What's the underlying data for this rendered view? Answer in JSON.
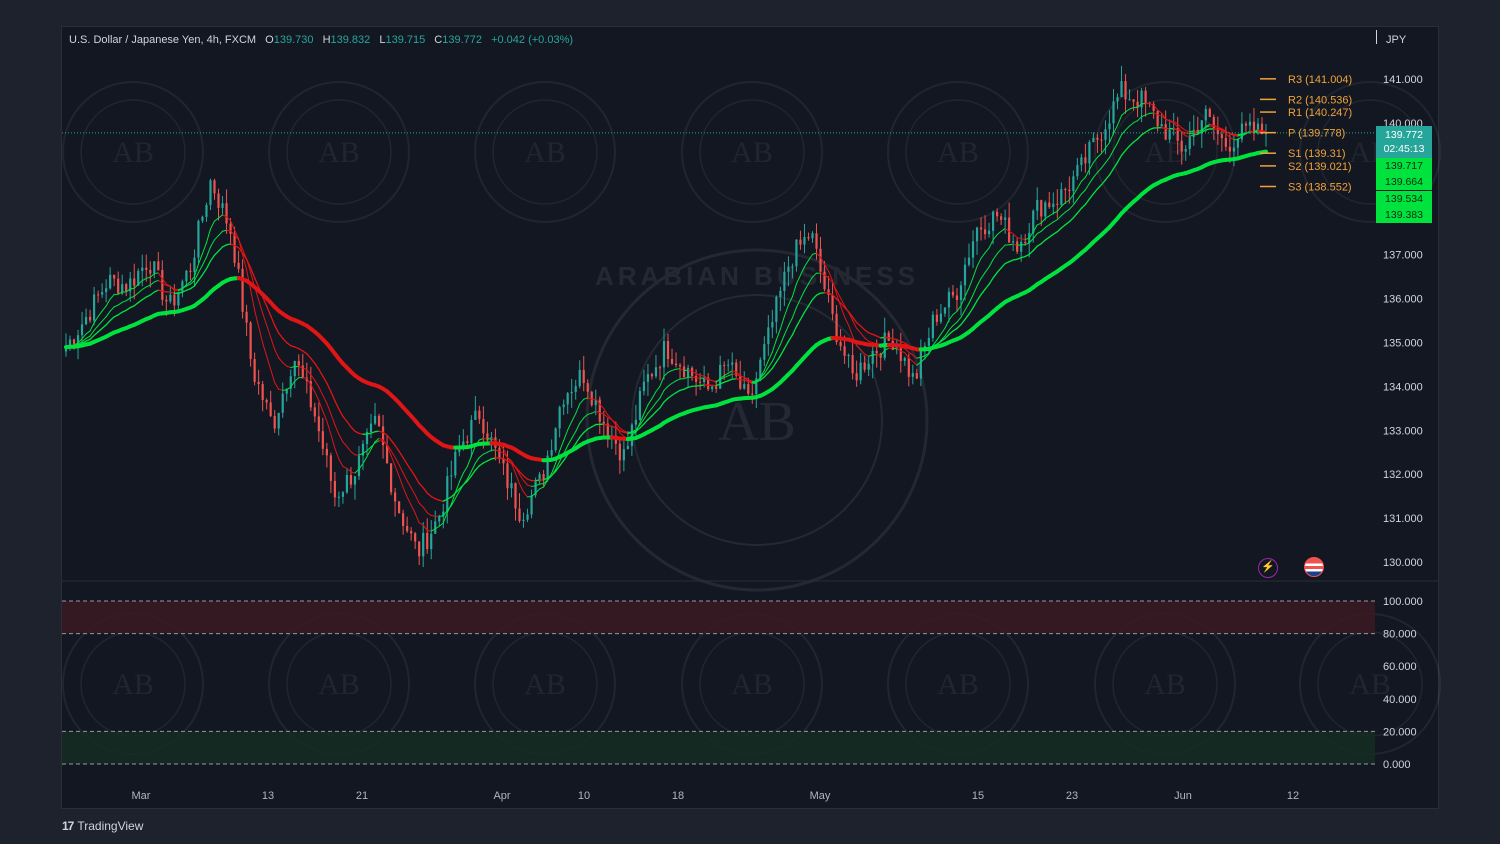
{
  "header": {
    "symbol": "U.S. Dollar / Japanese Yen, 4h, FXCM",
    "open_label": "O",
    "open": "139.730",
    "high_label": "H",
    "high": "139.832",
    "low_label": "L",
    "low": "139.715",
    "close_label": "C",
    "close": "139.772",
    "change": "+0.042 (+0.03%)",
    "currency": "JPY"
  },
  "branding": {
    "tradingview": "TradingView",
    "logo_glyph": "17"
  },
  "watermark": {
    "text": "ARABIAN BUSINESS",
    "monogram": "AB"
  },
  "price_axis": {
    "ticks": [
      "141.000",
      "140.000",
      "137.000",
      "136.000",
      "135.000",
      "134.000",
      "133.000",
      "132.000",
      "131.000",
      "130.000"
    ],
    "tick_values": [
      141,
      140,
      137,
      136,
      135,
      134,
      133,
      132,
      131,
      130
    ],
    "current_price": "139.772",
    "countdown": "02:45:13",
    "ma_tags": [
      "139.717",
      "139.664",
      "139.534",
      "139.383"
    ]
  },
  "oscillator_axis": {
    "ticks": [
      "100.000",
      "80.000",
      "60.000",
      "40.000",
      "20.000",
      "0.000"
    ],
    "tick_values": [
      100,
      80,
      60,
      40,
      20,
      0
    ],
    "overbought": 80,
    "oversold": 20
  },
  "time_axis": {
    "labels": [
      "Mar",
      "13",
      "21",
      "Apr",
      "10",
      "18",
      "May",
      "15",
      "23",
      "Jun",
      "12"
    ]
  },
  "pivots": [
    {
      "label": "R3 (141.004)",
      "value": 141.004
    },
    {
      "label": "R2 (140.536)",
      "value": 140.536
    },
    {
      "label": "R1 (140.247)",
      "value": 140.247
    },
    {
      "label": "P (139.778)",
      "value": 139.778
    },
    {
      "label": "S1 (139.31)",
      "value": 139.31
    },
    {
      "label": "S2 (139.021)",
      "value": 139.021
    },
    {
      "label": "S3 (138.552)",
      "value": 138.552
    }
  ],
  "events": [
    {
      "name": "flash-event",
      "glyph": "⚡"
    },
    {
      "name": "us-flag-event",
      "glyph": ""
    }
  ],
  "colors": {
    "background": "#131722",
    "bull": "#26a69a",
    "bear": "#ef5350",
    "ma_green": "#00e33f",
    "ma_red": "#e01515",
    "pivot": "#f0a33a"
  },
  "chart_data": {
    "type": "candlestick",
    "title": "U.S. Dollar / Japanese Yen, 4h, FXCM",
    "ylim": [
      129.6,
      141.6
    ],
    "x_labels": [
      "Mar",
      "13",
      "21",
      "Apr",
      "10",
      "18",
      "May",
      "15",
      "23",
      "Jun",
      "12"
    ],
    "close_path": [
      [
        "Mar",
        134.9
      ],
      [
        "Mar",
        135.6
      ],
      [
        "Mar",
        136.4
      ],
      [
        "Mar",
        136.3
      ],
      [
        "Mar",
        136.9
      ],
      [
        "Mar",
        135.8
      ],
      [
        "Mar",
        136.7
      ],
      [
        "13",
        138.7
      ],
      [
        "13",
        137.5
      ],
      [
        "13",
        134.4
      ],
      [
        "13",
        133.1
      ],
      [
        "13",
        134.7
      ],
      [
        "13",
        133.4
      ],
      [
        "21",
        131.5
      ],
      [
        "21",
        132.1
      ],
      [
        "21",
        133.2
      ],
      [
        "21",
        131.3
      ],
      [
        "21",
        130.2
      ],
      [
        "21",
        131.0
      ],
      [
        "21",
        132.6
      ],
      [
        "Apr",
        133.4
      ],
      [
        "Apr",
        132.2
      ],
      [
        "Apr",
        131.1
      ],
      [
        "Apr",
        131.9
      ],
      [
        "10",
        133.8
      ],
      [
        "10",
        134.3
      ],
      [
        "10",
        133.2
      ],
      [
        "10",
        132.4
      ],
      [
        "18",
        134.1
      ],
      [
        "18",
        134.9
      ],
      [
        "18",
        134.4
      ],
      [
        "18",
        133.9
      ],
      [
        "18",
        134.5
      ],
      [
        "18",
        133.6
      ],
      [
        "May",
        135.2
      ],
      [
        "May",
        136.9
      ],
      [
        "May",
        137.5
      ],
      [
        "May",
        135.6
      ],
      [
        "May",
        134.2
      ],
      [
        "May",
        134.8
      ],
      [
        "May",
        135.1
      ],
      [
        "May",
        134.1
      ],
      [
        "15",
        135.6
      ],
      [
        "15",
        136.1
      ],
      [
        "15",
        137.6
      ],
      [
        "15",
        137.9
      ],
      [
        "15",
        137.2
      ],
      [
        "23",
        138.1
      ],
      [
        "23",
        138.3
      ],
      [
        "23",
        138.9
      ],
      [
        "23",
        139.8
      ],
      [
        "23",
        140.7
      ],
      [
        "23",
        140.5
      ],
      [
        "23",
        139.9
      ],
      [
        "Jun",
        139.4
      ],
      [
        "Jun",
        140.2
      ],
      [
        "Jun",
        139.5
      ],
      [
        "Jun",
        139.8
      ],
      [
        "Jun",
        139.772
      ]
    ],
    "series": [
      {
        "name": "MA fast",
        "values": []
      },
      {
        "name": "MA slow",
        "values": []
      }
    ],
    "pivot_levels": [
      141.004,
      140.536,
      140.247,
      139.778,
      139.31,
      139.021,
      138.552
    ],
    "grid": false
  }
}
